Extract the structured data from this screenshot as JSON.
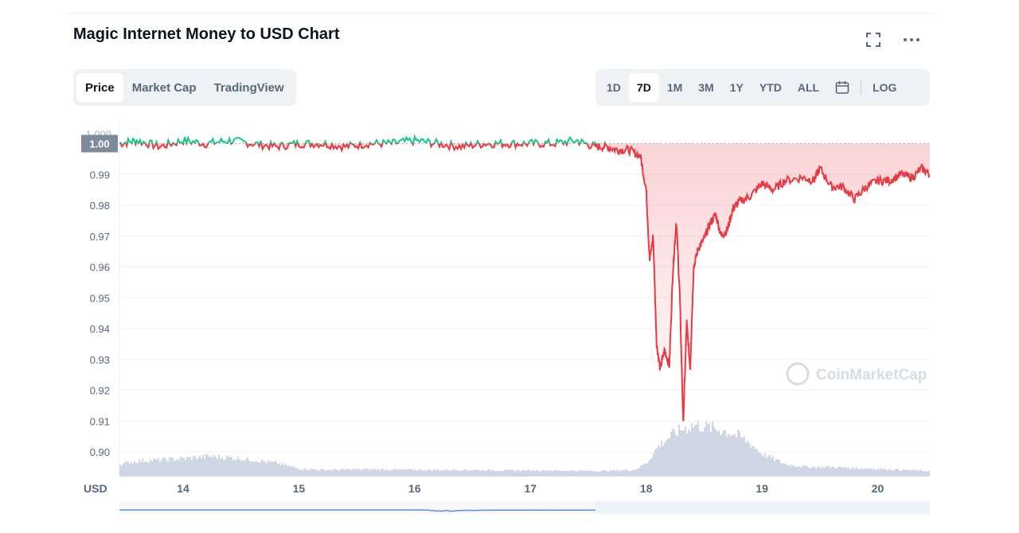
{
  "header": {
    "title": "Magic Internet Money to USD Chart",
    "fullscreen_icon": "fullscreen-icon",
    "more_icon": "more-options-icon"
  },
  "tabs": [
    {
      "label": "Price",
      "active": true
    },
    {
      "label": "Market Cap",
      "active": false
    },
    {
      "label": "TradingView",
      "active": false
    }
  ],
  "ranges": [
    {
      "label": "1D",
      "active": false
    },
    {
      "label": "7D",
      "active": true
    },
    {
      "label": "1M",
      "active": false
    },
    {
      "label": "3M",
      "active": false
    },
    {
      "label": "1Y",
      "active": false
    },
    {
      "label": "YTD",
      "active": false
    },
    {
      "label": "ALL",
      "active": false
    }
  ],
  "calendar_icon": "calendar-icon",
  "log_label": "LOG",
  "watermark": "CoinMarketCap",
  "colors": {
    "up": "#16c784",
    "down": "#ea3943",
    "volume": "#cfd6e4",
    "grid": "#eff2f5",
    "accent": "#3861fb"
  },
  "chart_data": {
    "type": "line",
    "baseline": 1.0,
    "current_price_label": "1.00",
    "y_top_label": "1.000",
    "ylim": [
      0.892,
      1.004
    ],
    "yticks": [
      0.99,
      0.98,
      0.97,
      0.96,
      0.95,
      0.94,
      0.93,
      0.92,
      0.91,
      0.9
    ],
    "ytick_labels": [
      "0.99",
      "0.98",
      "0.97",
      "0.96",
      "0.95",
      "0.94",
      "0.93",
      "0.92",
      "0.91",
      "0.90"
    ],
    "xlim": [
      13.45,
      20.45
    ],
    "xticks": [
      14,
      15,
      16,
      17,
      18,
      19,
      20
    ],
    "xtick_labels": [
      "14",
      "15",
      "16",
      "17",
      "18",
      "19",
      "20"
    ],
    "ylabel": "USD",
    "series": [
      {
        "x": [
          13.45,
          13.6,
          13.8,
          14.0,
          14.2,
          14.4,
          14.6,
          14.8,
          15.0,
          15.2,
          15.4,
          15.6,
          15.8,
          16.0,
          16.2,
          16.4,
          16.6,
          16.8,
          17.0,
          17.2,
          17.4,
          17.55,
          17.65,
          17.75,
          17.85,
          17.95,
          18.0,
          18.03,
          18.06,
          18.09,
          18.12,
          18.16,
          18.2,
          18.23,
          18.26,
          18.29,
          18.32,
          18.35,
          18.38,
          18.41,
          18.45,
          18.5,
          18.55,
          18.6,
          18.65,
          18.7,
          18.75,
          18.8,
          18.9,
          19.0,
          19.1,
          19.2,
          19.35,
          19.45,
          19.5,
          19.6,
          19.7,
          19.8,
          19.9,
          20.0,
          20.1,
          20.2,
          20.3,
          20.38,
          20.45
        ],
        "y": [
          1.0,
          1.001,
          0.999,
          1.001,
          1.0,
          1.001,
          1.0,
          0.999,
          1.0,
          1.0,
          0.999,
          1.0,
          1.0,
          1.001,
          1.0,
          0.999,
          1.0,
          1.0,
          1.0,
          1.0,
          1.001,
          0.999,
          0.999,
          0.998,
          0.998,
          0.996,
          0.985,
          0.962,
          0.97,
          0.935,
          0.927,
          0.933,
          0.928,
          0.958,
          0.975,
          0.951,
          0.909,
          0.942,
          0.927,
          0.96,
          0.966,
          0.969,
          0.974,
          0.977,
          0.97,
          0.972,
          0.979,
          0.981,
          0.983,
          0.987,
          0.985,
          0.988,
          0.989,
          0.988,
          0.992,
          0.986,
          0.986,
          0.982,
          0.986,
          0.988,
          0.988,
          0.99,
          0.989,
          0.992,
          0.99
        ]
      }
    ],
    "volume": {
      "x": [
        13.45,
        13.6,
        13.8,
        14.0,
        14.2,
        14.4,
        14.6,
        14.8,
        15.0,
        15.2,
        15.6,
        16.0,
        16.4,
        16.8,
        17.2,
        17.6,
        17.9,
        18.0,
        18.1,
        18.2,
        18.3,
        18.4,
        18.5,
        18.6,
        18.7,
        18.8,
        18.9,
        19.0,
        19.2,
        19.4,
        19.6,
        19.8,
        20.0,
        20.2,
        20.45
      ],
      "rel": [
        0.22,
        0.28,
        0.3,
        0.32,
        0.36,
        0.34,
        0.3,
        0.24,
        0.14,
        0.12,
        0.13,
        0.12,
        0.12,
        0.11,
        0.11,
        0.1,
        0.12,
        0.25,
        0.55,
        0.72,
        0.85,
        0.92,
        0.9,
        0.85,
        0.8,
        0.72,
        0.58,
        0.4,
        0.22,
        0.17,
        0.17,
        0.15,
        0.14,
        0.12,
        0.1
      ]
    }
  }
}
